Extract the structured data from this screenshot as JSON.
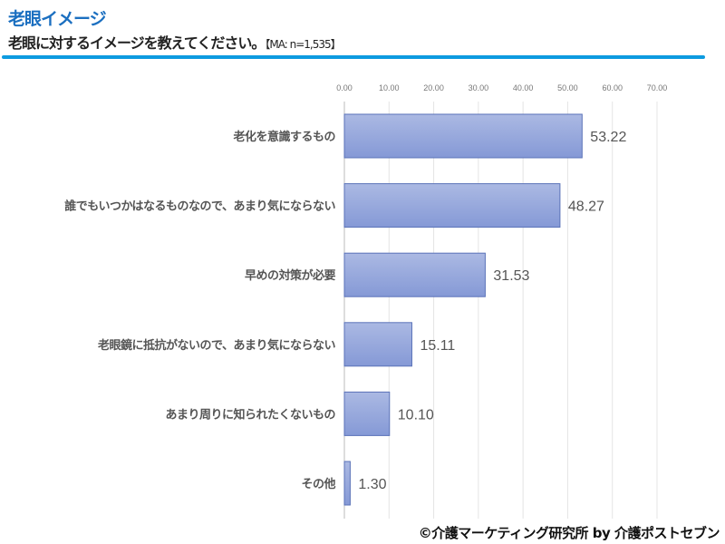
{
  "header": {
    "title": "老眼イメージ",
    "question": "老眼に対するイメージを教えてください。",
    "sample": "【MA: n=1,535】"
  },
  "credit": "©介護マーケティング研究所 by 介護ポストセブン",
  "chart_data": {
    "type": "bar",
    "orientation": "horizontal",
    "categories": [
      "老化を意識するもの",
      "誰でもいつかはなるものなので、あまり気にならない",
      "早めの対策が必要",
      "老眼鏡に抵抗がないので、あまり気にならない",
      "あまり周りに知られたくないもの",
      "その他"
    ],
    "values": [
      53.22,
      48.27,
      31.53,
      15.11,
      10.1,
      1.3
    ],
    "value_labels": [
      "53.22",
      "48.27",
      "31.53",
      "15.11",
      "10.10",
      "1.30"
    ],
    "xlim": [
      0,
      70
    ],
    "ticks": [
      "0.00",
      "10.00",
      "20.00",
      "30.00",
      "40.00",
      "50.00",
      "60.00",
      "70.00"
    ],
    "tick_values": [
      0,
      10,
      20,
      30,
      40,
      50,
      60,
      70
    ],
    "grid": true,
    "bar_color": "#8fa3dc",
    "bar_border": "#5a72b8"
  }
}
